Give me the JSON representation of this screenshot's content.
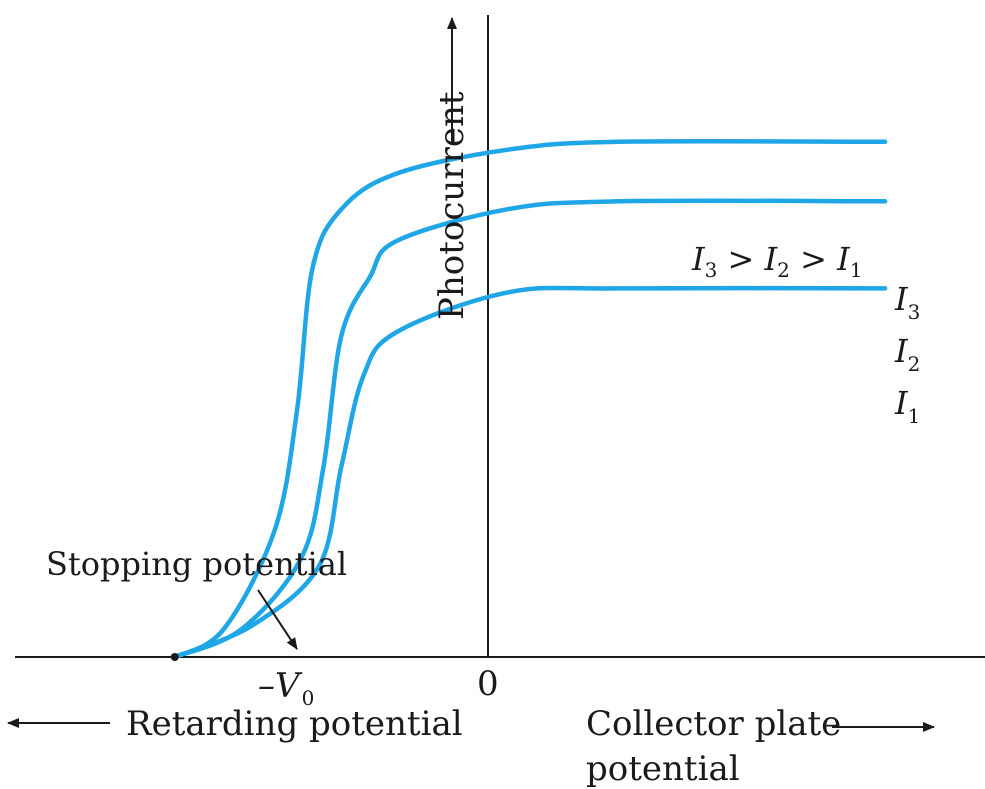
{
  "chart_data": {
    "type": "line",
    "title": "",
    "xlabel_left": "Retarding potential",
    "xlabel_right_line1": "Collector plate",
    "xlabel_right_line2": "potential",
    "ylabel": "Photocurrent",
    "x_ticks": [
      {
        "label_main": "–V",
        "label_sub": "0",
        "x": -1
      },
      {
        "label_main": "0",
        "label_sub": "",
        "x": 0
      }
    ],
    "xlim": [
      -1.72,
      2.65
    ],
    "ylim": [
      0,
      1.62
    ],
    "annotation": {
      "text": "Stopping potential",
      "target_x": -1,
      "target_y": 0
    },
    "relation": {
      "parts": [
        {
          "main": "I",
          "sub": "3"
        },
        {
          "text": " > "
        },
        {
          "main": "I",
          "sub": "2"
        },
        {
          "text": " > "
        },
        {
          "main": "I",
          "sub": "1"
        }
      ]
    },
    "series": [
      {
        "name": "I3",
        "label_main": "I",
        "label_sub": "3",
        "color": "#1ea6e6",
        "points": [
          [
            -1,
            0
          ],
          [
            -0.78,
            0.07
          ],
          [
            -0.55,
            0.32
          ],
          [
            -0.45,
            0.62
          ],
          [
            -0.38,
            0.98
          ],
          [
            -0.25,
            1.13
          ],
          [
            0,
            1.22
          ],
          [
            0.5,
            1.28
          ],
          [
            1,
            1.3
          ],
          [
            2.2,
            1.3
          ]
        ]
      },
      {
        "name": "I2",
        "label_main": "I",
        "label_sub": "2",
        "color": "#1ea6e6",
        "points": [
          [
            -1,
            0
          ],
          [
            -0.7,
            0.07
          ],
          [
            -0.43,
            0.25
          ],
          [
            -0.33,
            0.48
          ],
          [
            -0.25,
            0.81
          ],
          [
            -0.12,
            0.96
          ],
          [
            0,
            1.05
          ],
          [
            0.5,
            1.13
          ],
          [
            1,
            1.15
          ],
          [
            2.2,
            1.15
          ]
        ]
      },
      {
        "name": "I1",
        "label_main": "I",
        "label_sub": "1",
        "color": "#1ea6e6",
        "points": [
          [
            -1,
            0
          ],
          [
            -0.65,
            0.08
          ],
          [
            -0.35,
            0.23
          ],
          [
            -0.25,
            0.48
          ],
          [
            -0.15,
            0.71
          ],
          [
            0,
            0.82
          ],
          [
            0.5,
            0.92
          ],
          [
            1,
            0.93
          ],
          [
            2.2,
            0.93
          ]
        ]
      }
    ]
  }
}
